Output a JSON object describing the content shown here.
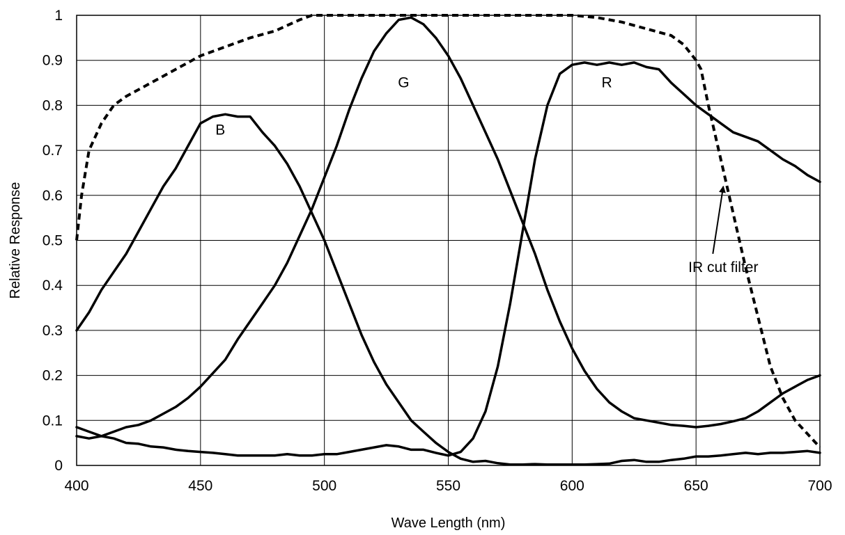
{
  "chart_data": {
    "type": "line",
    "title": "",
    "xlabel": "Wave Length (nm)",
    "ylabel": "Relative Response",
    "xlim": [
      400,
      700
    ],
    "ylim": [
      0,
      1
    ],
    "x_ticks": [
      "400",
      "450",
      "500",
      "550",
      "600",
      "650",
      "700"
    ],
    "y_ticks": [
      "0",
      "0.1",
      "0.2",
      "0.3",
      "0.4",
      "0.5",
      "0.6",
      "0.7",
      "0.8",
      "0.9",
      "1"
    ],
    "grid": true,
    "legend": "none",
    "series": [
      {
        "name": "B",
        "dashed": false,
        "x": [
          400,
          405,
          410,
          415,
          420,
          425,
          430,
          435,
          440,
          445,
          450,
          455,
          460,
          465,
          470,
          475,
          480,
          485,
          490,
          495,
          500,
          505,
          510,
          515,
          520,
          525,
          530,
          535,
          540,
          545,
          550,
          555,
          560,
          565,
          570,
          575,
          580,
          585,
          590,
          595,
          600,
          605,
          610,
          615,
          620,
          625,
          630,
          635,
          640,
          645,
          650,
          655,
          660,
          665,
          670,
          675,
          680,
          685,
          690,
          695,
          700
        ],
        "y": [
          0.3,
          0.34,
          0.39,
          0.43,
          0.47,
          0.52,
          0.57,
          0.62,
          0.66,
          0.71,
          0.76,
          0.775,
          0.78,
          0.775,
          0.775,
          0.74,
          0.71,
          0.67,
          0.62,
          0.56,
          0.5,
          0.43,
          0.36,
          0.29,
          0.23,
          0.18,
          0.14,
          0.1,
          0.075,
          0.05,
          0.03,
          0.015,
          0.008,
          0.01,
          0.005,
          0.002,
          0.002,
          0.003,
          0.002,
          0.002,
          0.002,
          0.002,
          0.003,
          0.004,
          0.01,
          0.012,
          0.008,
          0.008,
          0.012,
          0.015,
          0.02,
          0.02,
          0.022,
          0.025,
          0.028,
          0.025,
          0.028,
          0.028,
          0.03,
          0.032,
          0.028
        ]
      },
      {
        "name": "G",
        "dashed": false,
        "x": [
          400,
          405,
          410,
          415,
          420,
          425,
          430,
          435,
          440,
          445,
          450,
          455,
          460,
          465,
          470,
          475,
          480,
          485,
          490,
          495,
          500,
          505,
          510,
          515,
          520,
          525,
          530,
          535,
          540,
          545,
          550,
          555,
          560,
          565,
          570,
          575,
          580,
          585,
          590,
          595,
          600,
          605,
          610,
          615,
          620,
          625,
          630,
          635,
          640,
          645,
          650,
          655,
          660,
          665,
          670,
          675,
          680,
          685,
          690,
          695,
          700
        ],
        "y": [
          0.065,
          0.06,
          0.065,
          0.075,
          0.085,
          0.09,
          0.1,
          0.115,
          0.13,
          0.15,
          0.175,
          0.205,
          0.235,
          0.28,
          0.32,
          0.36,
          0.4,
          0.45,
          0.51,
          0.57,
          0.64,
          0.71,
          0.79,
          0.86,
          0.92,
          0.96,
          0.99,
          0.995,
          0.98,
          0.95,
          0.91,
          0.86,
          0.8,
          0.74,
          0.68,
          0.61,
          0.54,
          0.47,
          0.39,
          0.32,
          0.26,
          0.21,
          0.17,
          0.14,
          0.12,
          0.105,
          0.1,
          0.095,
          0.09,
          0.088,
          0.085,
          0.088,
          0.092,
          0.098,
          0.105,
          0.12,
          0.14,
          0.16,
          0.175,
          0.19,
          0.2
        ]
      },
      {
        "name": "R",
        "dashed": false,
        "x": [
          400,
          405,
          410,
          415,
          420,
          425,
          430,
          435,
          440,
          445,
          450,
          455,
          460,
          465,
          470,
          475,
          480,
          485,
          490,
          495,
          500,
          505,
          510,
          515,
          520,
          525,
          530,
          535,
          540,
          545,
          550,
          555,
          560,
          565,
          570,
          575,
          580,
          585,
          590,
          595,
          600,
          605,
          610,
          615,
          620,
          625,
          630,
          635,
          640,
          645,
          650,
          655,
          660,
          665,
          670,
          675,
          680,
          685,
          690,
          695,
          700
        ],
        "y": [
          0.085,
          0.075,
          0.065,
          0.06,
          0.05,
          0.048,
          0.042,
          0.04,
          0.035,
          0.032,
          0.03,
          0.028,
          0.025,
          0.022,
          0.022,
          0.022,
          0.022,
          0.025,
          0.022,
          0.022,
          0.025,
          0.025,
          0.03,
          0.035,
          0.04,
          0.045,
          0.042,
          0.035,
          0.035,
          0.028,
          0.022,
          0.03,
          0.06,
          0.12,
          0.22,
          0.36,
          0.52,
          0.68,
          0.8,
          0.87,
          0.89,
          0.895,
          0.89,
          0.895,
          0.89,
          0.895,
          0.885,
          0.88,
          0.85,
          0.825,
          0.8,
          0.78,
          0.76,
          0.74,
          0.73,
          0.72,
          0.7,
          0.68,
          0.665,
          0.645,
          0.63
        ]
      },
      {
        "name": "IR cut filter",
        "dashed": true,
        "x": [
          400,
          402,
          405,
          410,
          415,
          420,
          430,
          440,
          450,
          460,
          470,
          480,
          490,
          495,
          500,
          520,
          540,
          560,
          580,
          600,
          610,
          620,
          630,
          640,
          645,
          650,
          652,
          655,
          660,
          665,
          670,
          675,
          680,
          685,
          690,
          695,
          700
        ],
        "y": [
          0.5,
          0.6,
          0.7,
          0.76,
          0.8,
          0.82,
          0.85,
          0.88,
          0.91,
          0.93,
          0.95,
          0.965,
          0.99,
          1.0,
          1.0,
          1.0,
          1.0,
          1.0,
          1.0,
          1.0,
          0.995,
          0.985,
          0.97,
          0.955,
          0.935,
          0.9,
          0.88,
          0.8,
          0.68,
          0.56,
          0.44,
          0.33,
          0.22,
          0.15,
          0.1,
          0.07,
          0.04
        ]
      }
    ],
    "annotations": [
      {
        "text": "B",
        "x": 458,
        "y": 0.735
      },
      {
        "text": "G",
        "x": 532,
        "y": 0.84
      },
      {
        "text": "R",
        "x": 614,
        "y": 0.84
      },
      {
        "text": "IR cut filter",
        "x": 661,
        "y": 0.43,
        "arrow_to": [
          661,
          0.62
        ]
      }
    ]
  }
}
